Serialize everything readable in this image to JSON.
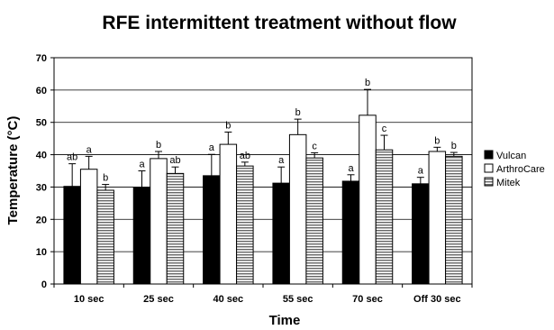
{
  "chart_data": {
    "type": "bar",
    "title": "RFE intermittent treatment without flow",
    "xlabel": "Time",
    "ylabel": "Temperature (°C)",
    "ylim": [
      0,
      70
    ],
    "yticks": [
      0,
      10,
      20,
      30,
      40,
      50,
      60,
      70
    ],
    "grid": true,
    "legend_position": "right",
    "categories": [
      "10 sec",
      "25 sec",
      "40 sec",
      "55 sec",
      "70 sec",
      "Off 30 sec"
    ],
    "series": [
      {
        "name": "Vulcan",
        "fill": "solid-black",
        "color": "#000000",
        "values": [
          30.2,
          29.8,
          33.5,
          31.2,
          31.8,
          31.0
        ],
        "errors": [
          7.0,
          5.2,
          6.6,
          5.0,
          2.0,
          2.0
        ],
        "significance": [
          "ab",
          "a",
          "a",
          "a",
          "a",
          "a"
        ]
      },
      {
        "name": "ArthroCare",
        "fill": "white",
        "color": "#ffffff",
        "values": [
          35.5,
          38.8,
          43.2,
          46.2,
          52.2,
          41.0
        ],
        "errors": [
          4.0,
          2.2,
          3.8,
          4.8,
          8.0,
          1.3
        ],
        "significance": [
          "a",
          "b",
          "b",
          "b",
          "b",
          "b"
        ]
      },
      {
        "name": "Mitek",
        "fill": "horizontal-stripes",
        "color": "#999999",
        "values": [
          29.0,
          34.2,
          36.5,
          39.0,
          41.5,
          39.5
        ],
        "errors": [
          1.8,
          2.0,
          1.2,
          1.6,
          4.5,
          1.2
        ],
        "significance": [
          "b",
          "ab",
          "ab",
          "c",
          "c",
          "b"
        ]
      }
    ]
  }
}
